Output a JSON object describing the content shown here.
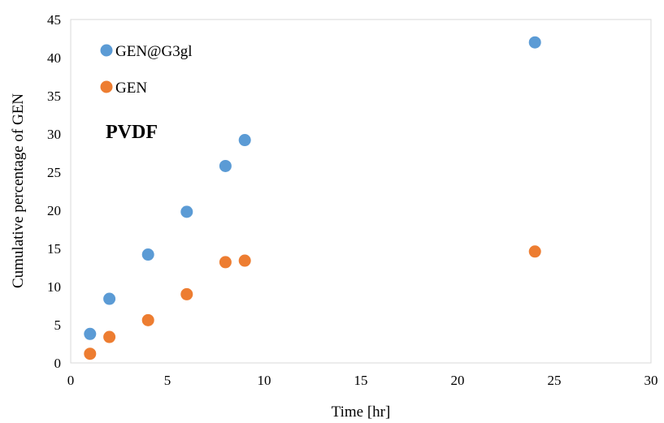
{
  "chart_data": {
    "type": "scatter",
    "xlabel": "Time [hr]",
    "ylabel": "Cumulative percentage of GEN",
    "xlim": [
      0,
      30
    ],
    "ylim": [
      0,
      45
    ],
    "x_ticks": [
      "0",
      "5",
      "10",
      "15",
      "20",
      "25",
      "30"
    ],
    "y_ticks": [
      "0",
      "5",
      "10",
      "15",
      "20",
      "25",
      "30",
      "35",
      "40",
      "45"
    ],
    "grid": false,
    "legend_position": "top-left inside",
    "annotation": "PVDF",
    "series": [
      {
        "name": "GEN@G3gl",
        "color": "#5b9bd5",
        "points": [
          {
            "x": 1,
            "y": 3.8
          },
          {
            "x": 2,
            "y": 8.4
          },
          {
            "x": 4,
            "y": 14.2
          },
          {
            "x": 6,
            "y": 19.8
          },
          {
            "x": 8,
            "y": 25.8
          },
          {
            "x": 9,
            "y": 29.2
          },
          {
            "x": 24,
            "y": 42.0
          }
        ]
      },
      {
        "name": "GEN",
        "color": "#ed7d31",
        "points": [
          {
            "x": 1,
            "y": 1.2
          },
          {
            "x": 2,
            "y": 3.4
          },
          {
            "x": 4,
            "y": 5.6
          },
          {
            "x": 6,
            "y": 9.0
          },
          {
            "x": 8,
            "y": 13.2
          },
          {
            "x": 9,
            "y": 13.4
          },
          {
            "x": 24,
            "y": 14.6
          }
        ]
      }
    ]
  }
}
